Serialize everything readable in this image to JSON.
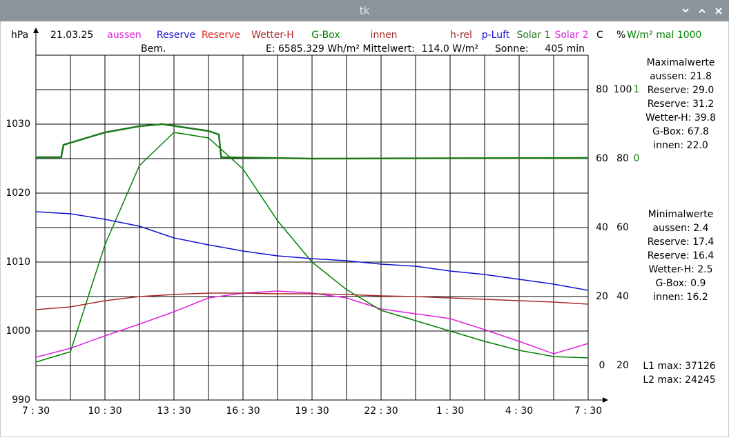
{
  "window": {
    "title": "tk"
  },
  "chart_data": {
    "type": "line",
    "date": "21.03.25",
    "y_axis_title": "hPa",
    "y2_axis_title": "C",
    "y3_axis_title": "%",
    "y4_axis_title": "W/m² mal 1000",
    "info": {
      "remark": "Bem.",
      "energy": "E: 6585.329 Wh/m² Mittelwert:",
      "mean": "114.0 W/m²",
      "sun_label": "Sonne:",
      "sun": "405 min"
    },
    "xlim": [
      0,
      24
    ],
    "xticks": [
      {
        "value": 0,
        "label": "7 : 30"
      },
      {
        "value": 3,
        "label": "10 : 30"
      },
      {
        "value": 6,
        "label": "13 : 30"
      },
      {
        "value": 9,
        "label": "16 : 30"
      },
      {
        "value": 12,
        "label": "19 : 30"
      },
      {
        "value": 15,
        "label": "22 : 30"
      },
      {
        "value": 18,
        "label": "1 : 30"
      },
      {
        "value": 21,
        "label": "4 : 30"
      },
      {
        "value": 24,
        "label": "7 : 30"
      }
    ],
    "xminor": [
      1.5,
      4.5,
      7.5,
      10.5,
      13.5,
      16.5,
      19.5,
      22.5
    ],
    "ylim": [
      990,
      1040
    ],
    "yticks": [
      990,
      1000,
      1010,
      1020,
      1030
    ],
    "yminor": [
      995,
      1005,
      1015,
      1025,
      1035,
      1040
    ],
    "y2lim": [
      -10,
      90
    ],
    "y2ticks": [
      0,
      20,
      40,
      60,
      80
    ],
    "y3lim": [
      10,
      110
    ],
    "y3ticks": [
      20,
      40,
      60,
      80,
      100
    ],
    "y4lim": [
      -3.5,
      1.5
    ],
    "y4ticks": [
      0,
      1
    ],
    "y4color": "#008000",
    "x": [
      0,
      1.5,
      3,
      4.5,
      6,
      7.5,
      9,
      10.5,
      12,
      13.5,
      15,
      16.5,
      18,
      19.5,
      21,
      22.5,
      24
    ],
    "series": [
      {
        "name": "aussen",
        "color": "#e020e0",
        "axis": "y2",
        "values": [
          2.4,
          5,
          8.6,
          12,
          15.6,
          19.6,
          21,
          21.6,
          21,
          19.6,
          16.4,
          15,
          13.6,
          10.4,
          7,
          3.4,
          6.4
        ]
      },
      {
        "name": "Reserve",
        "color": "#1010d0"
      },
      {
        "name": "Reserve",
        "color": "#e02020"
      },
      {
        "name": "Wetter-H",
        "color": "#a52a2a"
      },
      {
        "name": "G-Box",
        "color": "#008000",
        "axis": "y2",
        "values": [
          1,
          4,
          35,
          58,
          67.6,
          66,
          57,
          42,
          30,
          22,
          16,
          13,
          10,
          7,
          4.4,
          2.6,
          2.2
        ]
      },
      {
        "name": "innen",
        "color": "#a52a2a",
        "axis": "y2",
        "values": [
          16.2,
          17,
          18.8,
          20,
          20.6,
          21,
          21,
          20.8,
          20.8,
          20.6,
          20.2,
          20,
          19.6,
          19.2,
          18.8,
          18.4,
          17.8
        ]
      },
      {
        "name": "h-rel",
        "color": "#a52a2a"
      },
      {
        "name": "p-Luft",
        "color": "#1010d0",
        "axis": "y",
        "values": [
          1017.3,
          1017.0,
          1016.2,
          1015.2,
          1013.5,
          1012.5,
          1011.6,
          1010.9,
          1010.5,
          1010.2,
          1009.7,
          1009.4,
          1008.7,
          1008.2,
          1007.5,
          1006.8,
          1005.9
        ]
      },
      {
        "name": "Solar 1",
        "color": "#1a7a1a",
        "axis": "y4",
        "x": [
          0,
          1.1,
          1.2,
          3,
          4.5,
          5.5,
          7.5,
          7.95,
          8.05,
          12,
          24
        ],
        "values": [
          0.02,
          0.02,
          0.2,
          0.38,
          0.47,
          0.5,
          0.4,
          0.35,
          0.02,
          0.0,
          0.01
        ]
      },
      {
        "name": "Solar 2",
        "color": "#e020e0"
      }
    ],
    "max_title": "Maximalwerte",
    "max_values": [
      "aussen: 21.8",
      "Reserve: 29.0",
      "Reserve: 31.2",
      "Wetter-H: 39.8",
      "G-Box: 67.8",
      "innen: 22.0"
    ],
    "min_title": "Minimalwerte",
    "min_values": [
      "aussen: 2.4",
      "Reserve: 17.4",
      "Reserve: 16.4",
      "Wetter-H: 2.5",
      "G-Box: 0.9",
      "innen: 16.2"
    ],
    "totals": [
      "L1 max: 37126",
      "L2 max: 24245"
    ]
  }
}
